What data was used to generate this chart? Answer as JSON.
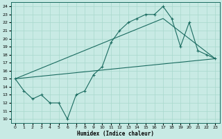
{
  "xlabel": "Humidex (Indice chaleur)",
  "bg_color": "#c8eae4",
  "line_color": "#1a6b60",
  "grid_color": "#a8d8cc",
  "xlim": [
    -0.5,
    23.5
  ],
  "ylim": [
    9.5,
    24.5
  ],
  "xticks": [
    0,
    1,
    2,
    3,
    4,
    5,
    6,
    7,
    8,
    9,
    10,
    11,
    12,
    13,
    14,
    15,
    16,
    17,
    18,
    19,
    20,
    21,
    22,
    23
  ],
  "yticks": [
    10,
    11,
    12,
    13,
    14,
    15,
    16,
    17,
    18,
    19,
    20,
    21,
    22,
    23,
    24
  ],
  "line1_x": [
    0,
    1,
    2,
    3,
    4,
    5,
    6,
    7,
    8,
    9,
    10,
    11,
    12,
    13,
    14,
    15,
    16,
    17,
    18,
    19,
    20,
    21,
    22,
    23
  ],
  "line1_y": [
    15,
    13.5,
    12.5,
    13,
    12,
    12,
    10,
    13,
    13.5,
    15.5,
    16.5,
    19.5,
    21,
    22,
    22.5,
    23,
    23,
    24,
    22.5,
    19,
    22,
    18.5,
    18,
    17.5
  ],
  "line2_x": [
    0,
    23
  ],
  "line2_y": [
    15,
    17.5
  ],
  "line3_x": [
    0,
    17,
    23
  ],
  "line3_y": [
    15,
    22.5,
    17.5
  ]
}
